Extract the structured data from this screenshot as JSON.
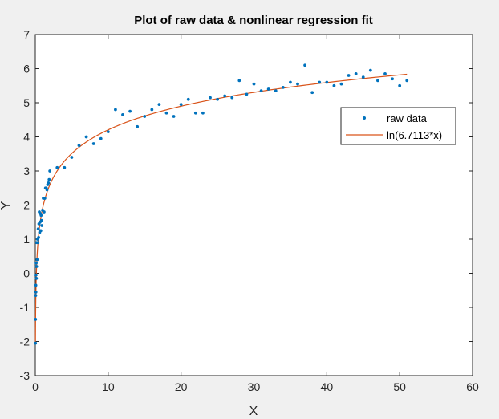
{
  "chart_data": {
    "type": "scatter",
    "title": "Plot of raw data & nonlinear regression fit",
    "xlabel": "X",
    "ylabel": "Y",
    "xlim": [
      0,
      60
    ],
    "ylim": [
      -3,
      7
    ],
    "xticks": [
      0,
      10,
      20,
      30,
      40,
      50,
      60
    ],
    "yticks": [
      -3,
      -2,
      -1,
      0,
      1,
      2,
      3,
      4,
      5,
      6,
      7
    ],
    "grid": false,
    "legend_position": "right-middle",
    "series": [
      {
        "name": "raw data",
        "kind": "markers",
        "color": "#0072bd",
        "points": [
          [
            0.02,
            -2.05
          ],
          [
            0.03,
            -1.35
          ],
          [
            0.05,
            -0.65
          ],
          [
            0.07,
            -0.35
          ],
          [
            0.08,
            -0.55
          ],
          [
            0.1,
            -0.05
          ],
          [
            0.12,
            0.3
          ],
          [
            0.15,
            -0.15
          ],
          [
            0.18,
            0.2
          ],
          [
            0.2,
            0.9
          ],
          [
            0.25,
            0.4
          ],
          [
            0.3,
            1.0
          ],
          [
            0.35,
            0.9
          ],
          [
            0.4,
            1.3
          ],
          [
            0.45,
            1.05
          ],
          [
            0.5,
            1.45
          ],
          [
            0.55,
            1.8
          ],
          [
            0.6,
            1.2
          ],
          [
            0.65,
            1.5
          ],
          [
            0.7,
            1.75
          ],
          [
            0.75,
            1.25
          ],
          [
            0.8,
            1.7
          ],
          [
            0.85,
            1.55
          ],
          [
            0.9,
            1.4
          ],
          [
            1.0,
            1.85
          ],
          [
            1.1,
            2.2
          ],
          [
            1.2,
            1.8
          ],
          [
            1.3,
            2.2
          ],
          [
            1.4,
            2.5
          ],
          [
            1.5,
            2.5
          ],
          [
            1.6,
            2.45
          ],
          [
            1.7,
            2.6
          ],
          [
            1.8,
            2.65
          ],
          [
            1.9,
            2.75
          ],
          [
            2.0,
            3.0
          ],
          [
            3.0,
            3.1
          ],
          [
            4.0,
            3.1
          ],
          [
            5.0,
            3.4
          ],
          [
            6.0,
            3.75
          ],
          [
            7.0,
            4.0
          ],
          [
            8.0,
            3.8
          ],
          [
            9.0,
            3.95
          ],
          [
            10.0,
            4.15
          ],
          [
            11.0,
            4.8
          ],
          [
            12.0,
            4.65
          ],
          [
            13.0,
            4.75
          ],
          [
            14.0,
            4.3
          ],
          [
            15.0,
            4.6
          ],
          [
            16.0,
            4.8
          ],
          [
            17.0,
            4.95
          ],
          [
            18.0,
            4.7
          ],
          [
            19.0,
            4.6
          ],
          [
            20.0,
            4.95
          ],
          [
            21.0,
            5.1
          ],
          [
            22.0,
            4.7
          ],
          [
            23.0,
            4.7
          ],
          [
            24.0,
            5.15
          ],
          [
            25.0,
            5.1
          ],
          [
            26.0,
            5.2
          ],
          [
            27.0,
            5.15
          ],
          [
            28.0,
            5.65
          ],
          [
            29.0,
            5.25
          ],
          [
            30.0,
            5.55
          ],
          [
            31.0,
            5.35
          ],
          [
            32.0,
            5.4
          ],
          [
            33.0,
            5.35
          ],
          [
            34.0,
            5.45
          ],
          [
            35.0,
            5.6
          ],
          [
            36.0,
            5.55
          ],
          [
            37.0,
            6.1
          ],
          [
            38.0,
            5.3
          ],
          [
            39.0,
            5.6
          ],
          [
            40.0,
            5.6
          ],
          [
            41.0,
            5.5
          ],
          [
            42.0,
            5.55
          ],
          [
            43.0,
            5.8
          ],
          [
            44.0,
            5.85
          ],
          [
            45.0,
            5.75
          ],
          [
            46.0,
            5.95
          ],
          [
            47.0,
            5.65
          ],
          [
            48.0,
            5.85
          ],
          [
            49.0,
            5.7
          ],
          [
            50.0,
            5.5
          ],
          [
            51.0,
            5.65
          ]
        ]
      },
      {
        "name": "ln(6.7113*x)",
        "kind": "line",
        "color": "#d95319",
        "coefficient": 6.7113,
        "x_range": [
          0.02,
          51
        ]
      }
    ]
  }
}
